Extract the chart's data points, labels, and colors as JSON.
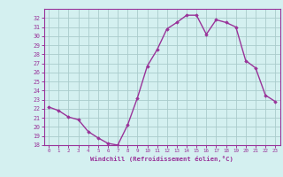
{
  "x": [
    0,
    1,
    2,
    3,
    4,
    5,
    6,
    7,
    8,
    9,
    10,
    11,
    12,
    13,
    14,
    15,
    16,
    17,
    18,
    19,
    20,
    21,
    22,
    23
  ],
  "y": [
    22.2,
    21.8,
    21.1,
    20.8,
    19.5,
    18.8,
    18.2,
    18.0,
    20.2,
    23.2,
    26.7,
    28.5,
    30.8,
    31.5,
    32.3,
    32.3,
    30.2,
    31.8,
    31.5,
    31.0,
    27.3,
    26.5,
    23.5,
    22.8
  ],
  "xlabel": "Windchill (Refroidissement éolien,°C)",
  "ylim": [
    18,
    33
  ],
  "xlim": [
    -0.5,
    23.5
  ],
  "yticks": [
    18,
    19,
    20,
    21,
    22,
    23,
    24,
    25,
    26,
    27,
    28,
    29,
    30,
    31,
    32
  ],
  "xticks": [
    0,
    1,
    2,
    3,
    4,
    5,
    6,
    7,
    8,
    9,
    10,
    11,
    12,
    13,
    14,
    15,
    16,
    17,
    18,
    19,
    20,
    21,
    22,
    23
  ],
  "line_color": "#993399",
  "marker_color": "#993399",
  "bg_color": "#d4f0f0",
  "grid_color": "#aacccc",
  "axis_color": "#993399",
  "tick_color": "#993399",
  "label_color": "#993399",
  "marker": "D",
  "marker_size": 1.8,
  "line_width": 1.0
}
